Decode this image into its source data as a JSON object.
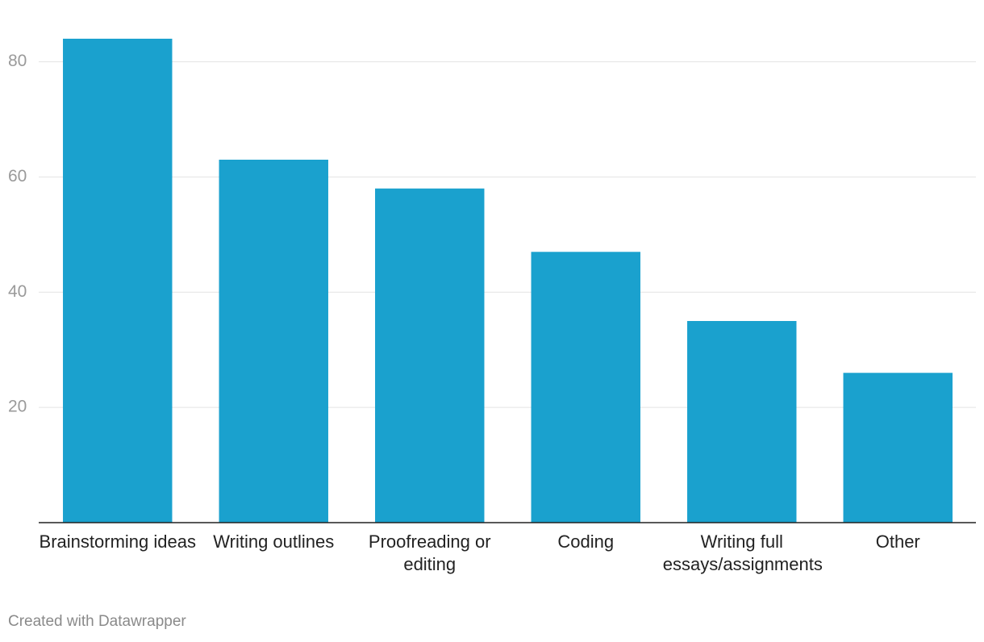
{
  "chart_data": {
    "type": "bar",
    "categories": [
      "Brainstorming ideas",
      "Writing outlines",
      "Proofreading or editing",
      "Coding",
      "Writing full essays/assignments",
      "Other"
    ],
    "values": [
      84,
      63,
      58,
      47,
      35,
      26
    ],
    "color": "#1aa1ce",
    "ylim": [
      0,
      84
    ],
    "yticks": [
      20,
      40,
      60,
      80
    ],
    "grid": true,
    "source": "Created with Datawrapper"
  }
}
